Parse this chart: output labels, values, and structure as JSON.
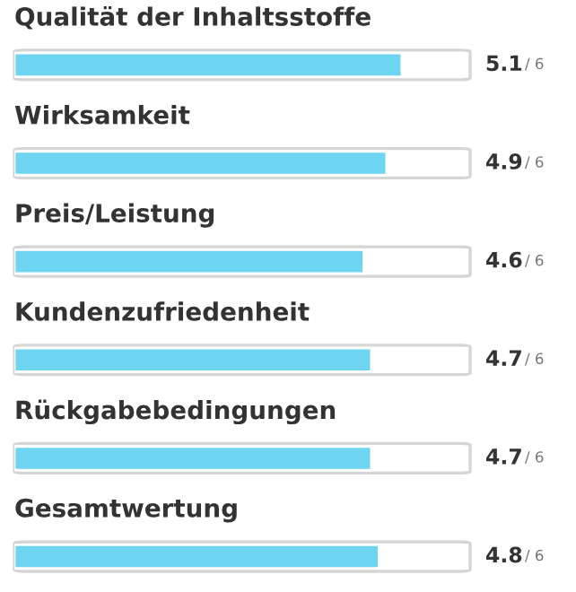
{
  "chart_data": {
    "type": "bar",
    "orientation": "horizontal",
    "categories": [
      "Qualität der Inhaltsstoffe",
      "Wirksamkeit",
      "Preis/Leistung",
      "Kundenzufriedenheit",
      "Rückgabebedingungen",
      "Gesamtwertung"
    ],
    "values": [
      5.1,
      4.9,
      4.6,
      4.7,
      4.7,
      4.8
    ],
    "data_labels": true,
    "annotations": [
      "/ 6",
      "/ 6",
      "/ 6",
      "/ 6",
      "/ 6",
      "/ 6"
    ],
    "color": "#6dd5f0",
    "xlim": [
      0,
      6
    ]
  }
}
